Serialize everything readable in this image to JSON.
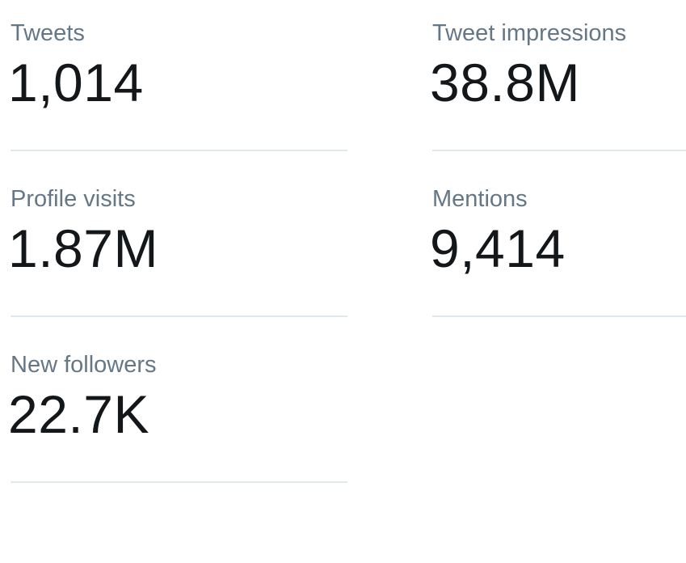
{
  "stats": [
    {
      "label": "Tweets",
      "value": "1,014"
    },
    {
      "label": "Tweet impressions",
      "value": "38.8M"
    },
    {
      "label": "Profile visits",
      "value": "1.87M"
    },
    {
      "label": "Mentions",
      "value": "9,414"
    },
    {
      "label": "New followers",
      "value": "22.7K"
    }
  ],
  "colors": {
    "label": "#657786",
    "value": "#14171a",
    "divider": "#e1e8ed",
    "background": "#ffffff"
  }
}
